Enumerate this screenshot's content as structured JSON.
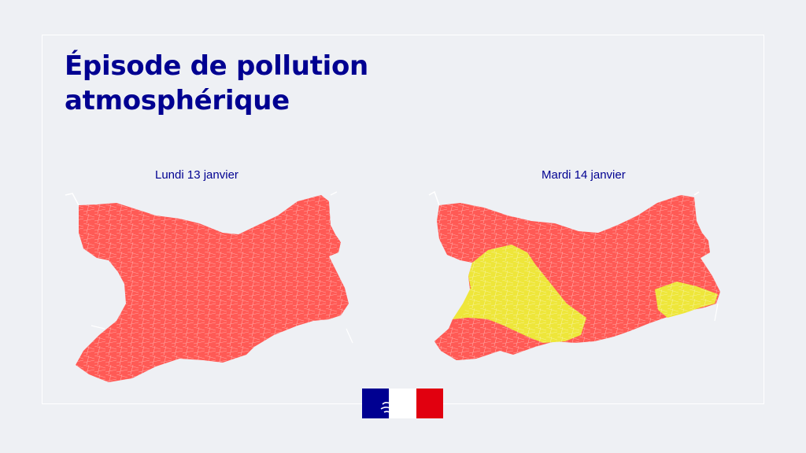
{
  "title": {
    "line1": "Épisode de pollution",
    "line2": "atmosphérique"
  },
  "maps": [
    {
      "label": "Lundi 13 janvier",
      "zones": [
        {
          "region": "entire area",
          "color": "#ff5a55"
        }
      ]
    },
    {
      "label": "Mardi 14 janvier",
      "zones": [
        {
          "region": "north and east",
          "color": "#ff5a55"
        },
        {
          "region": "west-central band",
          "color": "#eee63a"
        },
        {
          "region": "east pocket",
          "color": "#eee63a"
        },
        {
          "region": "southwest corner",
          "color": "#ff5a55"
        }
      ]
    }
  ],
  "colors": {
    "title": "#000091",
    "red_zone": "#ff5a55",
    "yellow_zone": "#eee63a",
    "flag_blue": "#000091",
    "flag_red": "#e1000f"
  },
  "logo": {
    "icon": "marianne-flag-icon"
  }
}
